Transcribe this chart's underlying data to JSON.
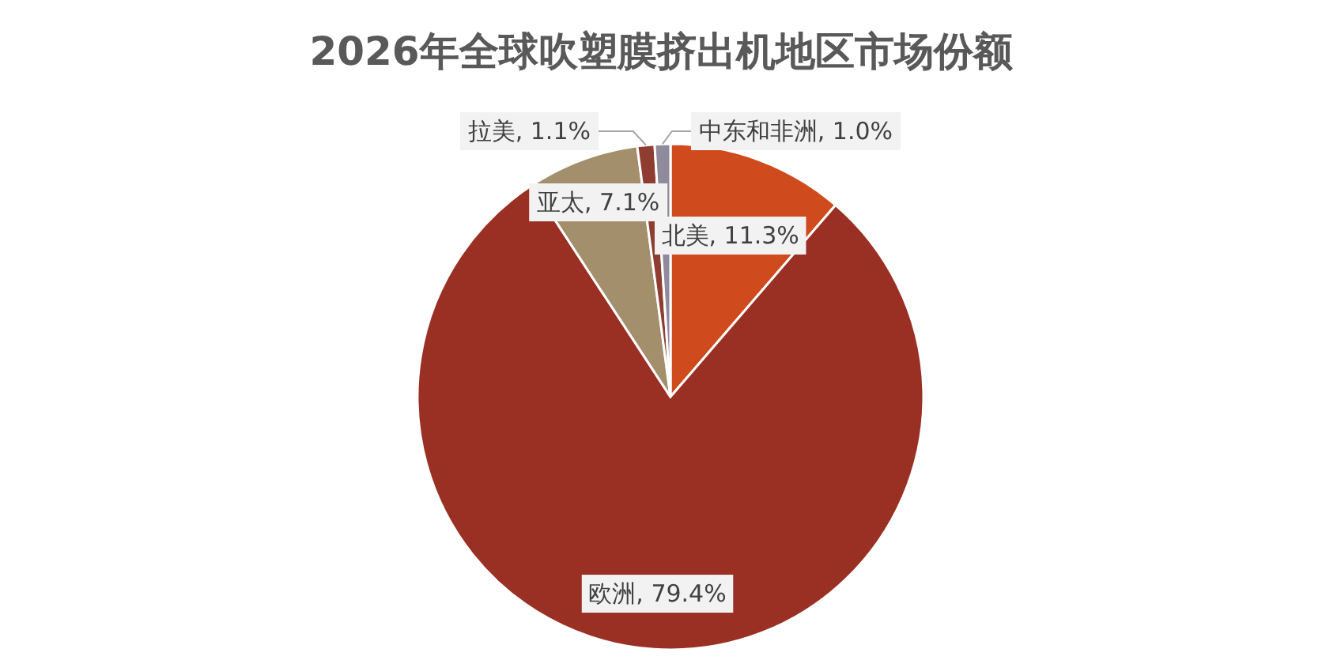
{
  "chart_data": {
    "type": "pie",
    "title": "2026年全球吹塑膜挤出机地区市场份额",
    "categories": [
      "北美",
      "欧洲",
      "亚太",
      "拉美",
      "中东和非洲"
    ],
    "values": [
      11.3,
      79.4,
      7.1,
      1.1,
      1.0
    ],
    "value_labels": [
      "11.3%",
      "79.4%",
      "7.1%",
      "1.1%",
      "1.0%"
    ],
    "colors": [
      "#cf4a1c",
      "#9a3024",
      "#a38f6c",
      "#8e3d30",
      "#8f8a9c"
    ],
    "legend": false
  }
}
